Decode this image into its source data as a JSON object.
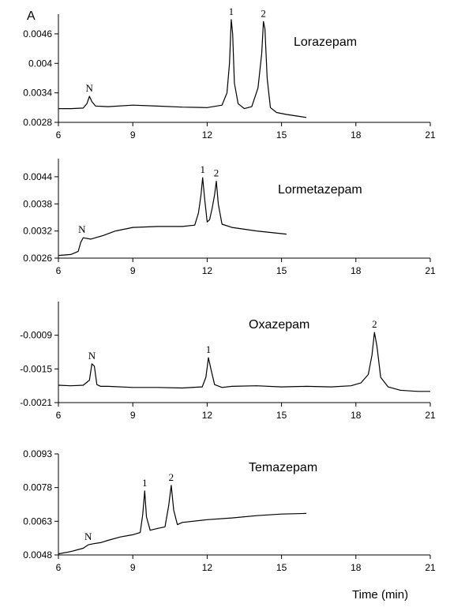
{
  "figure": {
    "panel_letter": "A",
    "xlabel": "Time (min)"
  },
  "chart_data": [
    {
      "type": "line",
      "title": "Lorazepam",
      "xlabel": "",
      "ylabel": "",
      "xlim": [
        6,
        21
      ],
      "ylim": [
        0.0028,
        0.005
      ],
      "x_ticks": [
        6,
        9,
        12,
        15,
        18,
        21
      ],
      "y_ticks": [
        0.0028,
        0.0034,
        0.004,
        0.0046
      ],
      "y_tick_labels": [
        "0.0028",
        "0.0034",
        "0.004",
        "0.0046"
      ],
      "x_tick_labels": [
        "6",
        "9",
        "12",
        "15",
        "18",
        "21"
      ],
      "series": [
        {
          "x": [
            6,
            6.5,
            7.0,
            7.15,
            7.25,
            7.35,
            7.5,
            8.0,
            9.0,
            10.0,
            11.0,
            12.0,
            12.6,
            12.8,
            12.9,
            12.97,
            13.03,
            13.1,
            13.25,
            13.5,
            13.8,
            14.05,
            14.2,
            14.27,
            14.33,
            14.42,
            14.55,
            14.8,
            15.2,
            15.6,
            16.0
          ],
          "values": [
            0.00308,
            0.00308,
            0.00309,
            0.00318,
            0.00333,
            0.00322,
            0.00313,
            0.00312,
            0.00315,
            0.00313,
            0.00311,
            0.0031,
            0.00315,
            0.0034,
            0.004,
            0.00489,
            0.0046,
            0.0036,
            0.00318,
            0.00308,
            0.00312,
            0.0035,
            0.0042,
            0.00485,
            0.0047,
            0.0037,
            0.0031,
            0.003,
            0.00296,
            0.00293,
            0.0029
          ]
        }
      ],
      "annotations": [
        {
          "text": "N",
          "x": 7.25,
          "y": 0.00333
        },
        {
          "text": "1",
          "x": 12.97,
          "y": 0.00489
        },
        {
          "text": "2",
          "x": 14.27,
          "y": 0.00485
        }
      ]
    },
    {
      "type": "line",
      "title": "Lormetazepam",
      "xlabel": "",
      "ylabel": "",
      "xlim": [
        6,
        21
      ],
      "ylim": [
        0.0026,
        0.0048
      ],
      "x_ticks": [
        6,
        9,
        12,
        15,
        18,
        21
      ],
      "y_ticks": [
        0.0026,
        0.0032,
        0.0038,
        0.0044
      ],
      "y_tick_labels": [
        "0.0026",
        "0.0032",
        "0.0038",
        "0.0044"
      ],
      "x_tick_labels": [
        "6",
        "9",
        "12",
        "15",
        "18",
        "21"
      ],
      "series": [
        {
          "x": [
            6,
            6.5,
            6.8,
            6.9,
            7.0,
            7.3,
            7.8,
            8.3,
            9.0,
            10.0,
            11.0,
            11.5,
            11.65,
            11.75,
            11.82,
            11.9,
            12.0,
            12.1,
            12.2,
            12.3,
            12.37,
            12.45,
            12.6,
            13.0,
            14.0,
            15.2
          ],
          "values": [
            0.00266,
            0.00268,
            0.00275,
            0.00295,
            0.00305,
            0.00302,
            0.0031,
            0.0032,
            0.00328,
            0.0033,
            0.0033,
            0.00333,
            0.0036,
            0.004,
            0.00438,
            0.0039,
            0.0034,
            0.00345,
            0.0037,
            0.004,
            0.0043,
            0.0038,
            0.00335,
            0.00328,
            0.0032,
            0.00313
          ]
        }
      ],
      "annotations": [
        {
          "text": "N",
          "x": 6.95,
          "y": 0.00305
        },
        {
          "text": "1",
          "x": 11.82,
          "y": 0.00438
        },
        {
          "text": "2",
          "x": 12.37,
          "y": 0.0043
        }
      ]
    },
    {
      "type": "line",
      "title": "Oxazepam",
      "xlabel": "",
      "ylabel": "",
      "xlim": [
        6,
        21
      ],
      "ylim": [
        -0.0021,
        -0.0003
      ],
      "x_ticks": [
        6,
        9,
        12,
        15,
        18,
        21
      ],
      "y_ticks": [
        -0.0021,
        -0.0015,
        -0.0009
      ],
      "y_tick_labels": [
        "-0.0021",
        "-0.0015",
        "-0.0009"
      ],
      "x_tick_labels": [
        "6",
        "9",
        "12",
        "15",
        "18",
        "21"
      ],
      "series": [
        {
          "x": [
            6,
            6.5,
            7.0,
            7.25,
            7.35,
            7.45,
            7.55,
            7.7,
            8.0,
            9.0,
            10.0,
            11.0,
            11.8,
            11.95,
            12.05,
            12.15,
            12.3,
            12.6,
            13.0,
            14.0,
            15.0,
            16.0,
            17.0,
            17.8,
            18.2,
            18.5,
            18.65,
            18.75,
            18.85,
            19.0,
            19.3,
            19.8,
            20.5,
            21.0
          ],
          "values": [
            -0.00179,
            -0.0018,
            -0.00179,
            -0.0017,
            -0.00141,
            -0.00145,
            -0.00178,
            -0.00181,
            -0.00181,
            -0.00183,
            -0.00183,
            -0.00184,
            -0.00182,
            -0.00165,
            -0.0013,
            -0.0015,
            -0.00178,
            -0.00183,
            -0.00181,
            -0.0018,
            -0.00182,
            -0.00181,
            -0.00182,
            -0.0018,
            -0.00175,
            -0.0016,
            -0.00125,
            -0.00085,
            -0.0011,
            -0.00165,
            -0.00182,
            -0.00188,
            -0.0019,
            -0.0019
          ]
        }
      ],
      "annotations": [
        {
          "text": "N",
          "x": 7.35,
          "y": -0.00141
        },
        {
          "text": "1",
          "x": 12.05,
          "y": -0.0013
        },
        {
          "text": "2",
          "x": 18.75,
          "y": -0.00085
        }
      ]
    },
    {
      "type": "line",
      "title": "Temazepam",
      "xlabel": "Time (min)",
      "ylabel": "",
      "xlim": [
        6,
        21
      ],
      "ylim": [
        0.0048,
        0.0093
      ],
      "x_ticks": [
        6,
        9,
        12,
        15,
        18,
        21
      ],
      "y_ticks": [
        0.0048,
        0.0063,
        0.0078,
        0.0093
      ],
      "y_tick_labels": [
        "0.0048",
        "0.0063",
        "0.0078",
        "0.0093"
      ],
      "x_tick_labels": [
        "6",
        "9",
        "12",
        "15",
        "18",
        "21"
      ],
      "series": [
        {
          "x": [
            6,
            6.5,
            7.0,
            7.2,
            7.4,
            7.7,
            8.0,
            8.5,
            9.0,
            9.3,
            9.4,
            9.48,
            9.55,
            9.7,
            10.0,
            10.3,
            10.45,
            10.55,
            10.65,
            10.8,
            11.0,
            12.0,
            13.0,
            14.0,
            15.0,
            16.0
          ],
          "values": [
            0.00485,
            0.00495,
            0.0051,
            0.00525,
            0.0053,
            0.00535,
            0.00545,
            0.0056,
            0.0057,
            0.0058,
            0.0066,
            0.00765,
            0.0065,
            0.0059,
            0.00598,
            0.00605,
            0.007,
            0.0079,
            0.0068,
            0.00615,
            0.00625,
            0.00637,
            0.00645,
            0.00655,
            0.00662,
            0.00665
          ]
        }
      ],
      "annotations": [
        {
          "text": "N",
          "x": 7.2,
          "y": 0.00525
        },
        {
          "text": "1",
          "x": 9.48,
          "y": 0.00765
        },
        {
          "text": "2",
          "x": 10.55,
          "y": 0.0079
        }
      ]
    }
  ]
}
